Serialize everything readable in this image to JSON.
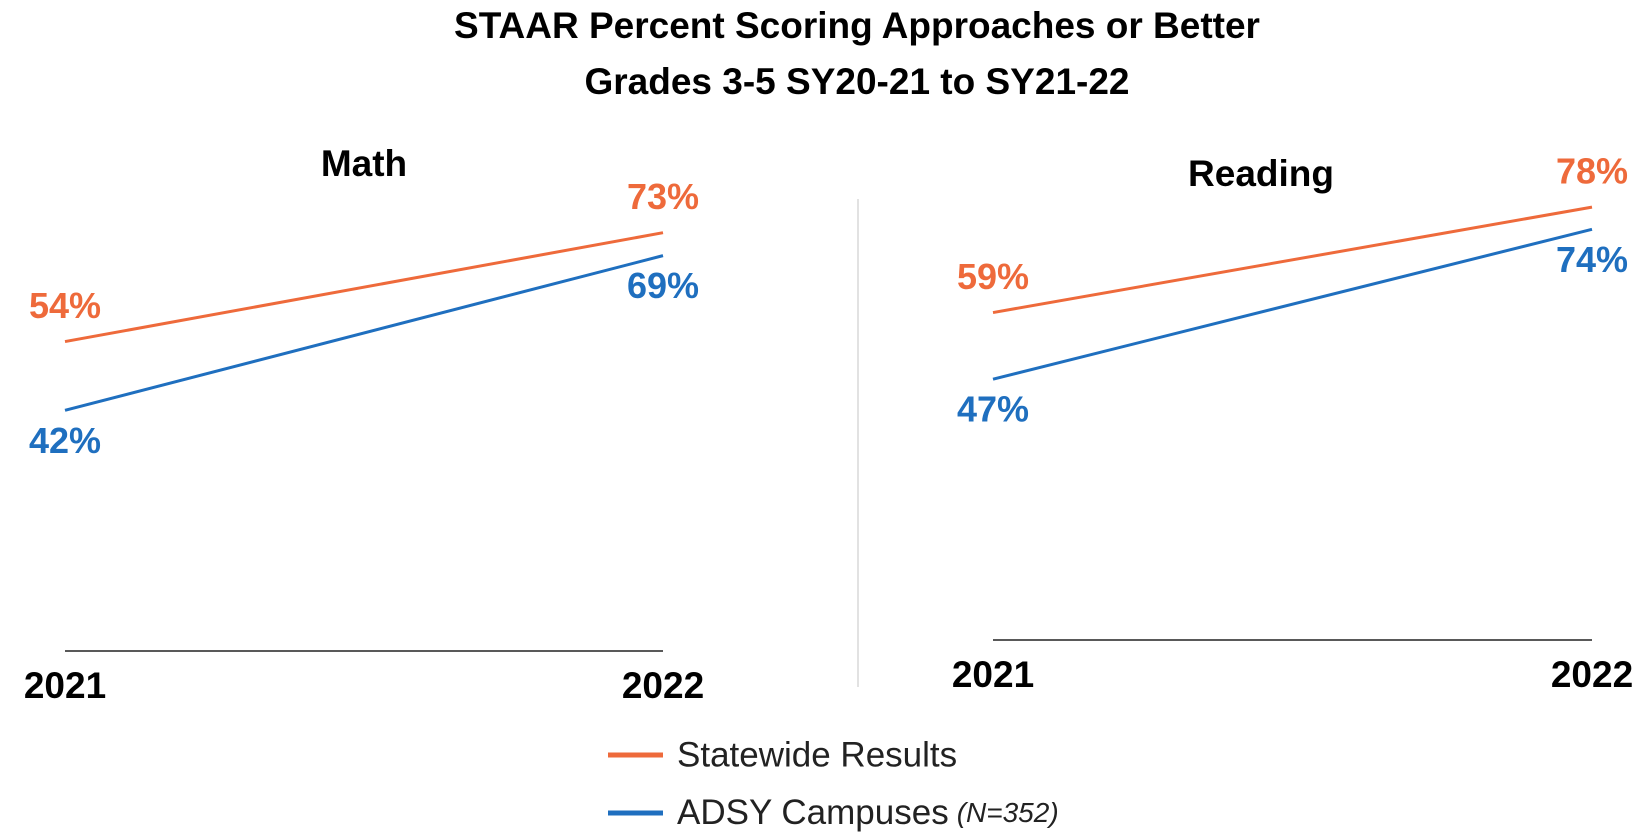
{
  "title": "STAAR Percent Scoring Approaches or Better",
  "subtitle": "Grades 3-5 SY20-21 to SY21-22",
  "legend_note": "(N=352)",
  "chart_data": [
    {
      "type": "line",
      "title": "Math",
      "categories": [
        "2021",
        "2022"
      ],
      "ylim": [
        0,
        100
      ],
      "series": [
        {
          "name": "Statewide Results",
          "color": "#ee6a3b",
          "values": [
            54,
            73
          ],
          "value_labels": [
            "54%",
            "73%"
          ]
        },
        {
          "name": "ADSY Campuses",
          "color": "#1f6fbf",
          "values": [
            42,
            69
          ],
          "value_labels": [
            "42%",
            "69%"
          ]
        }
      ]
    },
    {
      "type": "line",
      "title": "Reading",
      "categories": [
        "2021",
        "2022"
      ],
      "ylim": [
        0,
        100
      ],
      "series": [
        {
          "color": "#ee6a3b",
          "values": [
            59,
            78
          ],
          "value_labels": [
            "59%",
            "78%"
          ]
        },
        {
          "color": "#1f6fbf",
          "values": [
            47,
            74
          ],
          "value_labels": [
            "47%",
            "74%"
          ]
        }
      ]
    }
  ]
}
